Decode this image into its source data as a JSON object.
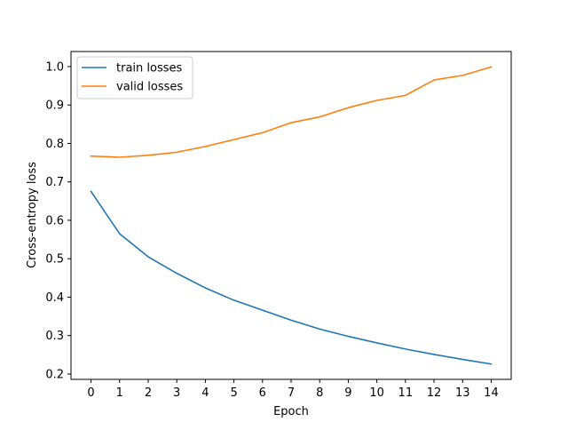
{
  "chart_data": {
    "type": "line",
    "title": "",
    "xlabel": "Epoch",
    "ylabel": "Cross-entropy loss",
    "x": [
      0,
      1,
      2,
      3,
      4,
      5,
      6,
      7,
      8,
      9,
      10,
      11,
      12,
      13,
      14
    ],
    "xticks": [
      "0",
      "1",
      "2",
      "3",
      "4",
      "5",
      "6",
      "7",
      "8",
      "9",
      "10",
      "11",
      "12",
      "13",
      "14"
    ],
    "xlim": [
      -0.7,
      14.7
    ],
    "yticks": [
      "0.2",
      "0.3",
      "0.4",
      "0.5",
      "0.6",
      "0.7",
      "0.8",
      "0.9",
      "1.0"
    ],
    "ylim": [
      0.1861,
      1.0391
    ],
    "grid": false,
    "legend_position": "top-left",
    "series": [
      {
        "name": "train losses",
        "color": "#1f77b4",
        "values": [
          0.675,
          0.565,
          0.505,
          0.462,
          0.424,
          0.392,
          0.366,
          0.34,
          0.317,
          0.298,
          0.281,
          0.265,
          0.251,
          0.238,
          0.226
        ]
      },
      {
        "name": "valid losses",
        "color": "#ff7f0e",
        "values": [
          0.767,
          0.764,
          0.769,
          0.777,
          0.792,
          0.81,
          0.828,
          0.854,
          0.869,
          0.893,
          0.912,
          0.925,
          0.965,
          0.977,
          0.999
        ]
      }
    ]
  }
}
